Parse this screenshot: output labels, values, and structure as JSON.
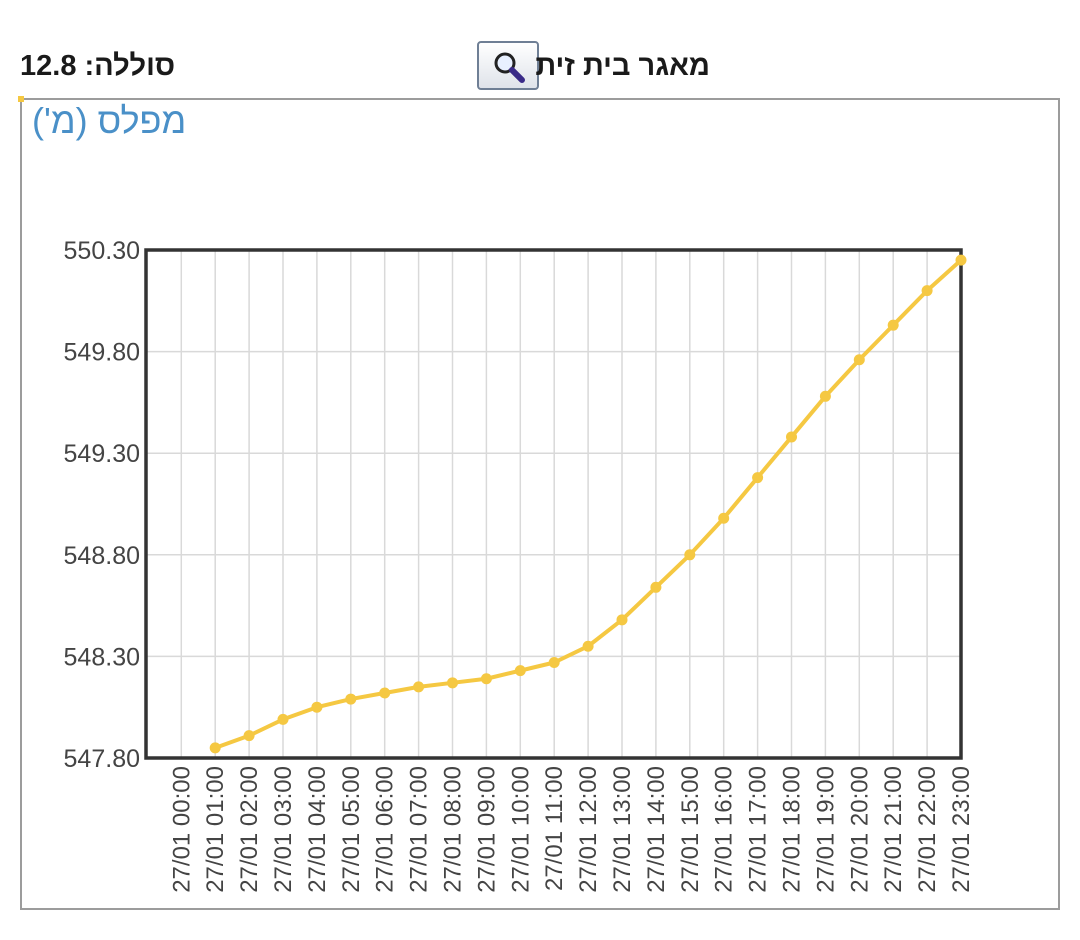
{
  "header": {
    "metric_text": "סוללה: 12.8",
    "station_name": "מאגר בית זית"
  },
  "chart_title": "מפלס (מ')",
  "chart_data": {
    "type": "line",
    "title": "מפלס (מ')",
    "xlabel": "",
    "ylabel": "",
    "categories": [
      "27/01 00:00",
      "27/01 01:00",
      "27/01 02:00",
      "27/01 03:00",
      "27/01 04:00",
      "27/01 05:00",
      "27/01 06:00",
      "27/01 07:00",
      "27/01 08:00",
      "27/01 09:00",
      "27/01 10:00",
      "27/01 11:00",
      "27/01 12:00",
      "27/01 13:00",
      "27/01 14:00",
      "27/01 15:00",
      "27/01 16:00",
      "27/01 17:00",
      "27/01 18:00",
      "27/01 19:00",
      "27/01 20:00",
      "27/01 21:00",
      "27/01 22:00",
      "27/01 23:00"
    ],
    "series": [
      {
        "name": "",
        "x": [
          "27/01 01:00",
          "27/01 02:00",
          "27/01 03:00",
          "27/01 04:00",
          "27/01 05:00",
          "27/01 06:00",
          "27/01 07:00",
          "27/01 08:00",
          "27/01 09:00",
          "27/01 10:00",
          "27/01 11:00",
          "27/01 12:00",
          "27/01 13:00",
          "27/01 14:00",
          "27/01 15:00",
          "27/01 16:00",
          "27/01 17:00",
          "27/01 18:00",
          "27/01 19:00",
          "27/01 20:00",
          "27/01 21:00",
          "27/01 22:00",
          "27/01 23:00"
        ],
        "values": [
          547.85,
          547.91,
          547.99,
          548.05,
          548.09,
          548.12,
          548.15,
          548.17,
          548.19,
          548.23,
          548.27,
          548.35,
          548.48,
          548.64,
          548.8,
          548.98,
          549.18,
          549.38,
          549.58,
          549.76,
          549.93,
          550.1,
          550.25
        ],
        "color": "#f5c842"
      }
    ],
    "y_ticks": [
      "550.30",
      "549.80",
      "549.30",
      "548.80",
      "548.30",
      "547.80"
    ],
    "ylim": [
      547.8,
      550.3
    ],
    "grid": true,
    "legend": "none",
    "colors": {
      "line": "#f5c842",
      "grid": "#d9d9d9",
      "axis": "#333333",
      "title": "#4a90c8"
    }
  }
}
